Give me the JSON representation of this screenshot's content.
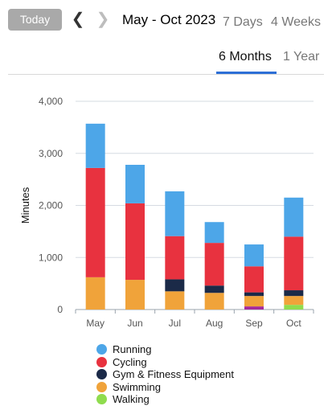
{
  "header": {
    "today_label": "Today",
    "prev_icon": "chevron-left-icon",
    "next_icon": "chevron-right-icon",
    "range_title": "May - Oct 2023"
  },
  "period_tabs": {
    "seven_days": "7 Days",
    "four_weeks": "4 Weeks",
    "six_months": "6 Months",
    "one_year": "1 Year",
    "selected": "6 Months"
  },
  "colors": {
    "accent": "#2d6fd6",
    "running": "#4da6e8",
    "cycling": "#e8323f",
    "gym": "#1b2a48",
    "swimming": "#f0a33a",
    "walking": "#8fdc4e",
    "other": "#a52a9b"
  },
  "chart_data": {
    "type": "bar",
    "stacked": true,
    "categories": [
      "May",
      "Jun",
      "Jul",
      "Aug",
      "Sep",
      "Oct"
    ],
    "ylabel": "Minutes",
    "xlabel": "",
    "ylim": [
      0,
      4000
    ],
    "yticks": [
      0,
      1000,
      2000,
      3000,
      4000
    ],
    "ytick_labels": [
      "0",
      "1,000",
      "2,000",
      "3,000",
      "4,000"
    ],
    "grid": true,
    "legend_position": "bottom",
    "series": [
      {
        "name": "Walking",
        "color": "#8fdc4e",
        "values": [
          0,
          0,
          0,
          0,
          0,
          90
        ]
      },
      {
        "name": "",
        "color": "#a52a9b",
        "values": [
          0,
          0,
          0,
          0,
          60,
          0
        ]
      },
      {
        "name": "Swimming",
        "color": "#f0a33a",
        "values": [
          620,
          570,
          350,
          320,
          200,
          170
        ]
      },
      {
        "name": "Gym & Fitness Equipment",
        "color": "#1b2a48",
        "values": [
          0,
          0,
          230,
          140,
          70,
          110
        ]
      },
      {
        "name": "Cycling",
        "color": "#e8323f",
        "values": [
          2100,
          1470,
          830,
          820,
          500,
          1030
        ]
      },
      {
        "name": "Running",
        "color": "#4da6e8",
        "values": [
          850,
          740,
          860,
          400,
          420,
          750
        ]
      }
    ]
  },
  "legend": [
    {
      "label": "Running",
      "color": "#4da6e8"
    },
    {
      "label": "Cycling",
      "color": "#e8323f"
    },
    {
      "label": "Gym & Fitness Equipment",
      "color": "#1b2a48"
    },
    {
      "label": "Swimming",
      "color": "#f0a33a"
    },
    {
      "label": "Walking",
      "color": "#8fdc4e"
    }
  ]
}
